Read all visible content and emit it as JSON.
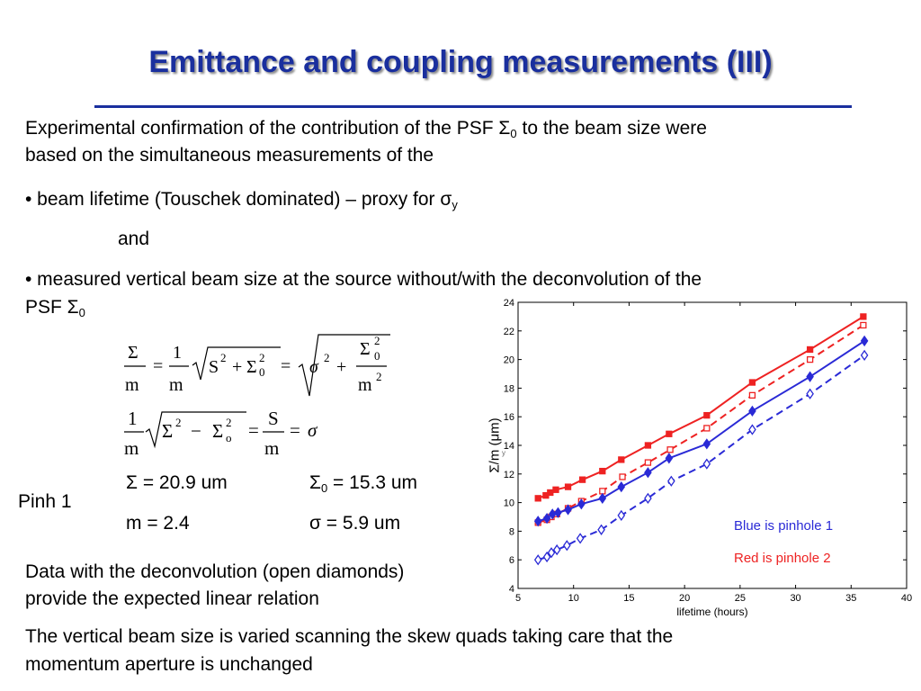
{
  "slide": {
    "title": "Emittance and coupling measurements (III)",
    "intro_line1": "Experimental confirmation of the contribution of the PSF Σ",
    "intro_line1_sub": "0",
    "intro_line1_tail": " to the beam size were",
    "intro_line2": "based on the simultaneous measurements of the",
    "bullet1": "• beam lifetime (Touschek dominated) – proxy for σ",
    "bullet1_sub": "y",
    "and": "and",
    "bullet2_line1": "• measured vertical beam size at the source without/with the deconvolution of the",
    "bullet2_line2": "PSF Σ",
    "bullet2_line2_sub": "0",
    "pinh_label": "Pinh 1",
    "values": {
      "sigma": "Σ = 20.9 um",
      "sigma0_pre": "Σ",
      "sigma0_sub": "0",
      "sigma0_post": " = 15.3 um",
      "m": "m = 2.4",
      "sigma_small": "σ = 5.9 um"
    },
    "note1_line1": "Data with the deconvolution (open diamonds)",
    "note1_line2": "provide the expected linear relation",
    "note2_line1": "The vertical beam size is varied scanning the skew quads taking care that the",
    "note2_line2": "momentum aperture is unchanged"
  },
  "equations": {
    "eq1": {
      "Sigma": "Σ",
      "m": "m",
      "one": "1",
      "S": "S",
      "two": "2",
      "Sigma0": "Σ",
      "zero": "0",
      "plus": "+",
      "equals": "=",
      "sigma": "σ"
    },
    "eq2": {
      "one": "1",
      "m": "m",
      "Sigma": "Σ",
      "two": "2",
      "minus": "−",
      "o": "o",
      "S": "S",
      "equals": "=",
      "sigma": "σ"
    }
  },
  "chart_data": {
    "type": "line",
    "xlabel": "lifetime (hours)",
    "ylabel": "Σ/m (μm)",
    "ylabel_fragment": "y",
    "xlim": [
      5,
      40
    ],
    "ylim": [
      4,
      24
    ],
    "xticks": [
      5,
      10,
      15,
      20,
      25,
      30,
      35,
      40
    ],
    "yticks": [
      4,
      6,
      8,
      10,
      12,
      14,
      16,
      18,
      20,
      22,
      24
    ],
    "legend_blue": "Blue is pinhole 1",
    "legend_red": "Red is pinhole 2",
    "colors": {
      "blue": "#2a2ad6",
      "red": "#ee2222"
    },
    "series": [
      {
        "color": "red",
        "style": "solid",
        "marker": "square-filled",
        "x": [
          6.8,
          7.5,
          7.9,
          8.4,
          9.5,
          10.8,
          12.6,
          14.3,
          16.7,
          18.6,
          22.0,
          26.1,
          31.3,
          36.1
        ],
        "y": [
          10.3,
          10.5,
          10.7,
          10.9,
          11.1,
          11.6,
          12.2,
          13.0,
          14.0,
          14.8,
          16.1,
          18.4,
          20.7,
          23.0
        ]
      },
      {
        "color": "red",
        "style": "dashed",
        "marker": "square-open",
        "x": [
          6.8,
          7.6,
          8.0,
          8.5,
          9.5,
          10.7,
          12.6,
          14.4,
          16.7,
          18.7,
          22.0,
          26.1,
          31.3,
          36.1
        ],
        "y": [
          8.6,
          8.8,
          9.0,
          9.2,
          9.6,
          10.1,
          10.8,
          11.8,
          12.8,
          13.7,
          15.2,
          17.5,
          20.0,
          22.4
        ]
      },
      {
        "color": "blue",
        "style": "solid",
        "marker": "diamond-filled",
        "x": [
          6.8,
          7.6,
          8.1,
          8.6,
          9.5,
          10.7,
          12.6,
          14.3,
          16.7,
          18.6,
          22.0,
          26.1,
          31.3,
          36.2
        ],
        "y": [
          8.7,
          8.9,
          9.2,
          9.3,
          9.5,
          9.9,
          10.3,
          11.1,
          12.1,
          13.1,
          14.1,
          16.4,
          18.8,
          21.3
        ]
      },
      {
        "color": "blue",
        "style": "dashed",
        "marker": "diamond-open",
        "x": [
          6.8,
          7.6,
          8.0,
          8.5,
          9.4,
          10.6,
          12.5,
          14.3,
          16.7,
          18.8,
          22.0,
          26.1,
          31.3,
          36.2
        ],
        "y": [
          6.0,
          6.2,
          6.5,
          6.7,
          7.0,
          7.5,
          8.1,
          9.1,
          10.3,
          11.5,
          12.7,
          15.1,
          17.6,
          20.3
        ]
      }
    ]
  }
}
